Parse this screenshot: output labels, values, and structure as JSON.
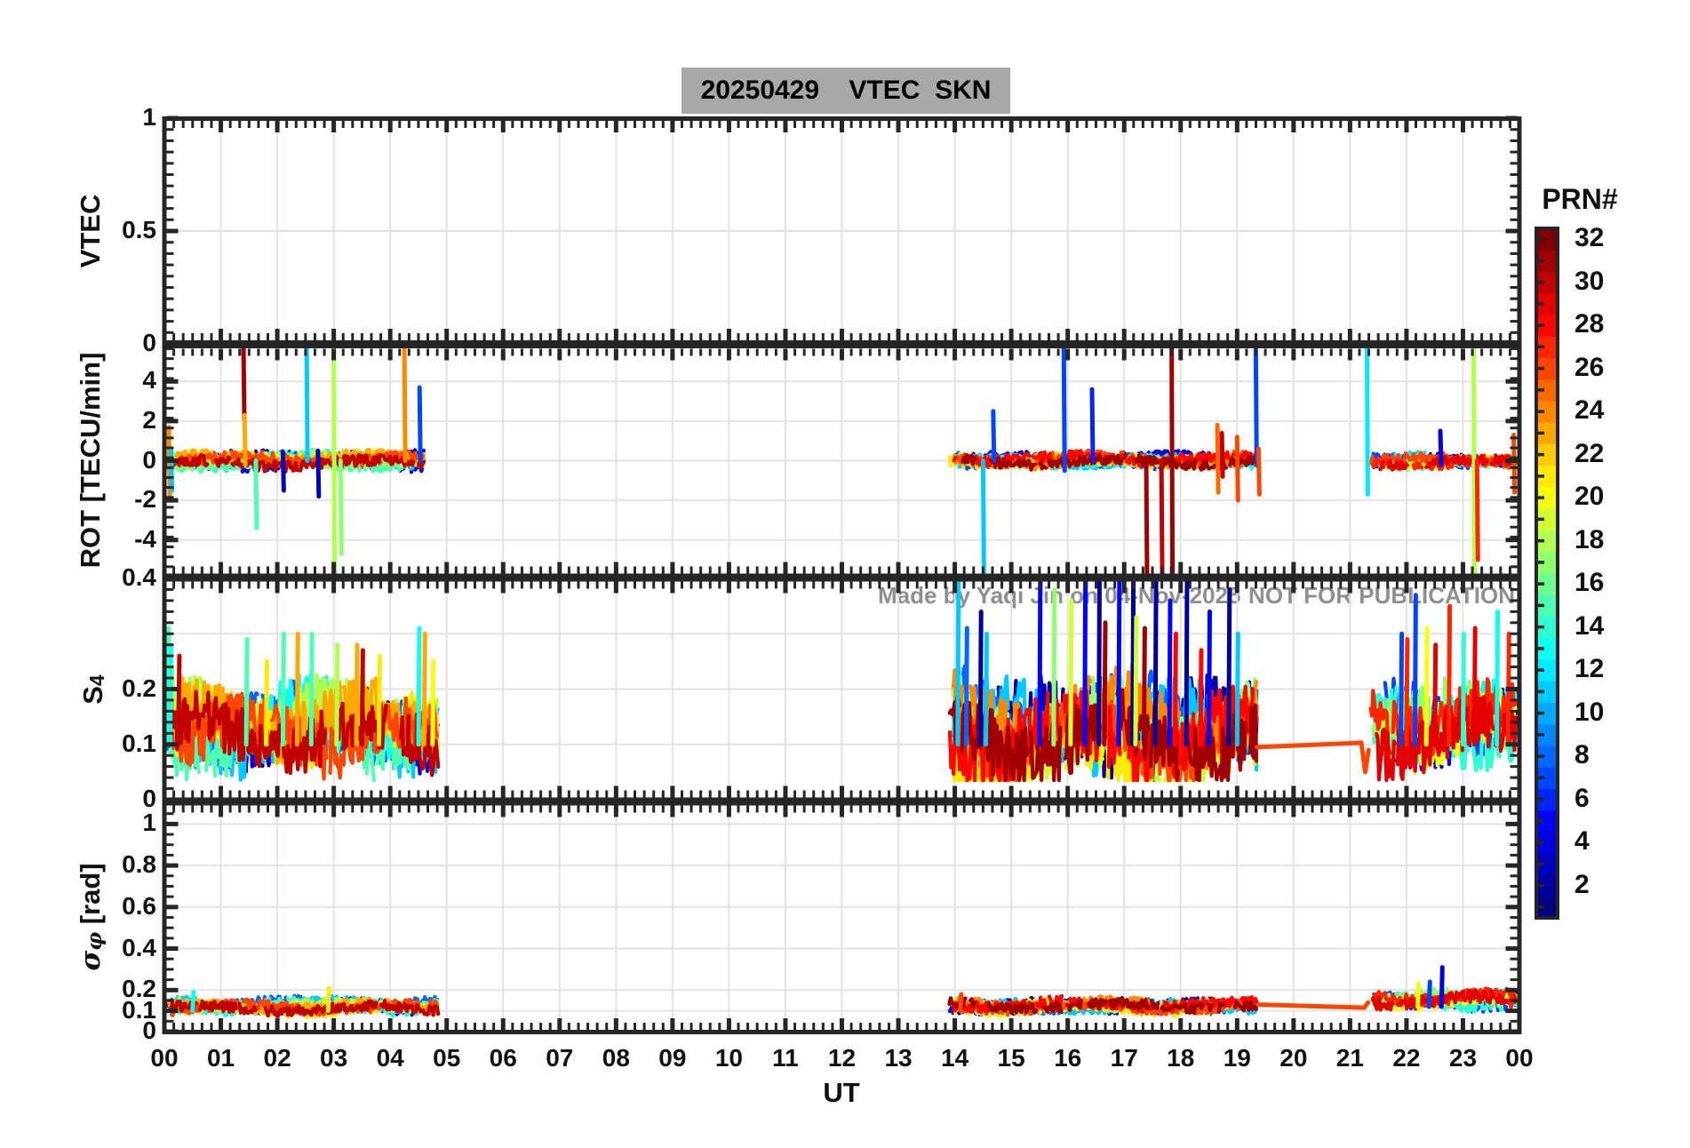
{
  "title": "20250429    VTEC  SKN",
  "watermark": {
    "left": "Made by Yaqi Jin on 04-Nov-2025",
    "right": "NOT FOR PUBLICATION"
  },
  "style": {
    "title_bg": "#a8a8a8",
    "axis_color": "#262626",
    "grid_color": "#e2e2e2",
    "label_color": "#111111",
    "watermark_color": "#8f8f8f",
    "background": "#ffffff"
  },
  "colorbar": {
    "title": "PRN#",
    "colormap": "jet",
    "min": 1,
    "max": 32,
    "tick_values": [
      2,
      4,
      6,
      8,
      10,
      12,
      14,
      16,
      18,
      20,
      22,
      24,
      26,
      28,
      30,
      32
    ],
    "tick_labels": [
      "2",
      "4",
      "6",
      "8",
      "10",
      "12",
      "14",
      "16",
      "18",
      "20",
      "22",
      "24",
      "26",
      "28",
      "30",
      "32"
    ]
  },
  "chart_data": {
    "type": "line",
    "x_axis": {
      "label": "UT",
      "range": [
        0,
        24
      ],
      "minor_tick_minutes": 10,
      "tick_values": [
        0,
        1,
        2,
        3,
        4,
        5,
        6,
        7,
        8,
        9,
        10,
        11,
        12,
        13,
        14,
        15,
        16,
        17,
        18,
        19,
        20,
        21,
        22,
        23,
        24
      ],
      "tick_labels": [
        "00",
        "01",
        "02",
        "03",
        "04",
        "05",
        "06",
        "07",
        "08",
        "09",
        "10",
        "11",
        "12",
        "13",
        "14",
        "15",
        "16",
        "17",
        "18",
        "19",
        "20",
        "21",
        "22",
        "23",
        "00"
      ]
    },
    "panels": [
      {
        "id": "vtec",
        "ylabel": "VTEC",
        "ylim": [
          0,
          1
        ],
        "ytick_values": [
          0,
          0.5,
          1
        ],
        "ytick_labels": [
          "0",
          "0.5",
          "1"
        ],
        "grid_values": [
          0.5
        ],
        "minor_step": 0.05,
        "clusters": [],
        "spikes": [],
        "connectors": []
      },
      {
        "id": "rot",
        "ylabel": "ROT [TECU/min]",
        "ylim": [
          -5.85,
          5.85
        ],
        "ytick_values": [
          -4,
          -2,
          0,
          2,
          4
        ],
        "ytick_labels": [
          "-4",
          "-2",
          "0",
          "2",
          "4"
        ],
        "grid_values": [
          -4,
          -2,
          0,
          2,
          4
        ],
        "minor_step": 0.5,
        "clusters": [
          {
            "t0": 0.05,
            "t1": 4.6,
            "base": 0,
            "amp": 0.55,
            "gap": 0.25,
            "prns": [
              2,
              3,
              4,
              8,
              11,
              13,
              15,
              17,
              18,
              21,
              23,
              26,
              30
            ]
          },
          {
            "t0": 13.9,
            "t1": 19.35,
            "base": 0,
            "amp": 0.5,
            "gap": 0.45,
            "prns": [
              2,
              4,
              7,
              8,
              11,
              13,
              17,
              19,
              21,
              24,
              26,
              28,
              31
            ]
          },
          {
            "t0": 21.35,
            "t1": 23.95,
            "base": 0,
            "amp": 0.5,
            "gap": 0.4,
            "prns": [
              3,
              7,
              12,
              13,
              17,
              20,
              26,
              27,
              29
            ]
          }
        ],
        "spikes": [
          {
            "prn": 24,
            "t": 0.08,
            "v0": 1.7,
            "v1": -1.9
          },
          {
            "prn": 11,
            "t": 0.12,
            "v0": 0.6,
            "v1": -1.5
          },
          {
            "prn": 31,
            "t": 1.4,
            "v0": 5.9,
            "v1": 2.1
          },
          {
            "prn": 23,
            "t": 1.42,
            "v0": 2.3,
            "v1": -0.2
          },
          {
            "prn": 15,
            "t": 1.62,
            "v0": 0,
            "v1": -3.4
          },
          {
            "prn": 3,
            "t": 2.1,
            "v0": 0.4,
            "v1": -1.5
          },
          {
            "prn": 11,
            "t": 2.52,
            "v0": 5.9,
            "v1": 0
          },
          {
            "prn": 3,
            "t": 2.72,
            "v0": 0.5,
            "v1": -1.8
          },
          {
            "prn": 18,
            "t": 3.0,
            "v0": 5.9,
            "v1": -5.9
          },
          {
            "prn": 17,
            "t": 3.12,
            "v0": 0,
            "v1": -4.7
          },
          {
            "prn": 24,
            "t": 4.25,
            "v0": 5.9,
            "v1": 0
          },
          {
            "prn": 7,
            "t": 4.52,
            "v0": 3.7,
            "v1": 0
          },
          {
            "prn": 11,
            "t": 14.5,
            "v0": 0,
            "v1": -5.9
          },
          {
            "prn": 7,
            "t": 14.68,
            "v0": 2.5,
            "v1": 0
          },
          {
            "prn": 7,
            "t": 15.93,
            "v0": 5.9,
            "v1": -0.5
          },
          {
            "prn": 6,
            "t": 16.43,
            "v0": 3.6,
            "v1": 0
          },
          {
            "prn": 31,
            "t": 17.39,
            "v0": 0,
            "v1": -5.9
          },
          {
            "prn": 30,
            "t": 17.66,
            "v0": 0,
            "v1": -5.9
          },
          {
            "prn": 31,
            "t": 17.84,
            "v0": 5.9,
            "v1": -5.9
          },
          {
            "prn": 25,
            "t": 18.65,
            "v0": 1.8,
            "v1": -1.6
          },
          {
            "prn": 30,
            "t": 18.73,
            "v0": 1.4,
            "v1": -0.8
          },
          {
            "prn": 26,
            "t": 19.0,
            "v0": 1.2,
            "v1": -2.0
          },
          {
            "prn": 7,
            "t": 19.33,
            "v0": 5.9,
            "v1": 0
          },
          {
            "prn": 26,
            "t": 19.38,
            "v0": 0.6,
            "v1": -1.7
          },
          {
            "prn": 12,
            "t": 21.3,
            "v0": 5.9,
            "v1": -1.7
          },
          {
            "prn": 4,
            "t": 22.6,
            "v0": 1.5,
            "v1": -0.2
          },
          {
            "prn": 18,
            "t": 23.19,
            "v0": 5.9,
            "v1": -5.9
          },
          {
            "prn": 27,
            "t": 23.25,
            "v0": 0,
            "v1": -5.0
          },
          {
            "prn": 26,
            "t": 23.9,
            "v0": 1.3,
            "v1": -1.6
          }
        ],
        "connectors": []
      },
      {
        "id": "s4",
        "ylabel": "S",
        "ylabel_sub": "4",
        "ylim": [
          0,
          0.4
        ],
        "ytick_values": [
          0,
          0.1,
          0.2,
          0.4
        ],
        "ytick_labels": [
          "0",
          "0.1",
          "0.2",
          "0.4"
        ],
        "grid_values": [
          0.1,
          0.2,
          0.3
        ],
        "minor_step": 0.02,
        "clusters": [
          {
            "t0": 0.03,
            "t1": 4.85,
            "base": 0.13,
            "amp": 0.1,
            "gap": 0.25,
            "prns": [
              2,
              4,
              8,
              11,
              13,
              15,
              18,
              21,
              23,
              26,
              30
            ]
          },
          {
            "t0": 13.9,
            "t1": 19.35,
            "base": 0.12,
            "amp": 0.12,
            "gap": 0.3,
            "prns": [
              2,
              5,
              8,
              11,
              17,
              19,
              21,
              24,
              26,
              28,
              31
            ]
          },
          {
            "t0": 21.35,
            "t1": 23.95,
            "base": 0.14,
            "amp": 0.1,
            "gap": 0.25,
            "prns": [
              4,
              7,
              13,
              14,
              17,
              20,
              27,
              29
            ]
          }
        ],
        "spikes": [
          {
            "prn": 15,
            "t": 0.06,
            "v0": 0.1,
            "v1": 0.31
          },
          {
            "prn": 13,
            "t": 0.1,
            "v0": 0.1,
            "v1": 0.28
          },
          {
            "prn": 30,
            "t": 0.25,
            "v0": 0.1,
            "v1": 0.26
          },
          {
            "prn": 15,
            "t": 1.45,
            "v0": 0.1,
            "v1": 0.29
          },
          {
            "prn": 21,
            "t": 1.8,
            "v0": 0.1,
            "v1": 0.25
          },
          {
            "prn": 15,
            "t": 2.1,
            "v0": 0.1,
            "v1": 0.3
          },
          {
            "prn": 23,
            "t": 2.35,
            "v0": 0.1,
            "v1": 0.3
          },
          {
            "prn": 15,
            "t": 2.6,
            "v0": 0.1,
            "v1": 0.3
          },
          {
            "prn": 18,
            "t": 3.05,
            "v0": 0.1,
            "v1": 0.28
          },
          {
            "prn": 23,
            "t": 3.4,
            "v0": 0.1,
            "v1": 0.28
          },
          {
            "prn": 30,
            "t": 3.5,
            "v0": 0.1,
            "v1": 0.27
          },
          {
            "prn": 21,
            "t": 3.8,
            "v0": 0.1,
            "v1": 0.26
          },
          {
            "prn": 13,
            "t": 4.5,
            "v0": 0.1,
            "v1": 0.31
          },
          {
            "prn": 23,
            "t": 4.6,
            "v0": 0.1,
            "v1": 0.3
          },
          {
            "prn": 20,
            "t": 4.75,
            "v0": 0.1,
            "v1": 0.25
          },
          {
            "prn": 11,
            "t": 14.05,
            "v0": 0.1,
            "v1": 0.42
          },
          {
            "prn": 8,
            "t": 14.2,
            "v0": 0.1,
            "v1": 0.31
          },
          {
            "prn": 2,
            "t": 14.45,
            "v0": 0.1,
            "v1": 0.34
          },
          {
            "prn": 11,
            "t": 14.55,
            "v0": 0.1,
            "v1": 0.3
          },
          {
            "prn": 5,
            "t": 15.5,
            "v0": 0.1,
            "v1": 0.42
          },
          {
            "prn": 17,
            "t": 15.75,
            "v0": 0.1,
            "v1": 0.38
          },
          {
            "prn": 19,
            "t": 16.05,
            "v0": 0.1,
            "v1": 0.36
          },
          {
            "prn": 5,
            "t": 16.3,
            "v0": 0.1,
            "v1": 0.42
          },
          {
            "prn": 2,
            "t": 16.55,
            "v0": 0.1,
            "v1": 0.44
          },
          {
            "prn": 31,
            "t": 16.65,
            "v0": 0.1,
            "v1": 0.32
          },
          {
            "prn": 5,
            "t": 16.9,
            "v0": 0.1,
            "v1": 0.42
          },
          {
            "prn": 2,
            "t": 17.15,
            "v0": 0.1,
            "v1": 0.44
          },
          {
            "prn": 19,
            "t": 17.2,
            "v0": 0.1,
            "v1": 0.33
          },
          {
            "prn": 31,
            "t": 17.35,
            "v0": 0.1,
            "v1": 0.31
          },
          {
            "prn": 2,
            "t": 17.55,
            "v0": 0.1,
            "v1": 0.42
          },
          {
            "prn": 5,
            "t": 17.8,
            "v0": 0.1,
            "v1": 0.36
          },
          {
            "prn": 28,
            "t": 17.9,
            "v0": 0.1,
            "v1": 0.3
          },
          {
            "prn": 2,
            "t": 18.1,
            "v0": 0.1,
            "v1": 0.44
          },
          {
            "prn": 28,
            "t": 18.35,
            "v0": 0.1,
            "v1": 0.27
          },
          {
            "prn": 5,
            "t": 18.5,
            "v0": 0.1,
            "v1": 0.34
          },
          {
            "prn": 2,
            "t": 18.85,
            "v0": 0.1,
            "v1": 0.38
          },
          {
            "prn": 11,
            "t": 19.0,
            "v0": 0.1,
            "v1": 0.3
          },
          {
            "prn": 7,
            "t": 21.9,
            "v0": 0.1,
            "v1": 0.3
          },
          {
            "prn": 27,
            "t": 22.0,
            "v0": 0.1,
            "v1": 0.29
          },
          {
            "prn": 7,
            "t": 22.15,
            "v0": 0.1,
            "v1": 0.37
          },
          {
            "prn": 20,
            "t": 22.35,
            "v0": 0.1,
            "v1": 0.31
          },
          {
            "prn": 29,
            "t": 22.5,
            "v0": 0.1,
            "v1": 0.28
          },
          {
            "prn": 27,
            "t": 22.75,
            "v0": 0.1,
            "v1": 0.35
          },
          {
            "prn": 14,
            "t": 23.0,
            "v0": 0.1,
            "v1": 0.3
          },
          {
            "prn": 29,
            "t": 23.2,
            "v0": 0.1,
            "v1": 0.31
          },
          {
            "prn": 13,
            "t": 23.6,
            "v0": 0.1,
            "v1": 0.34
          },
          {
            "prn": 27,
            "t": 23.8,
            "v0": 0.1,
            "v1": 0.3
          }
        ],
        "connectors": [
          {
            "prn": 26,
            "points": [
              [
                19.35,
                0.095
              ],
              [
                21.2,
                0.103
              ],
              [
                21.27,
                0.05
              ],
              [
                21.33,
                0.09
              ]
            ]
          }
        ]
      },
      {
        "id": "sigma_phi",
        "ylabel": "σ",
        "ylabel_sub": "φ",
        "ylabel_suffix": " [rad]",
        "ylim": [
          0,
          1.1
        ],
        "ytick_values": [
          0,
          0.1,
          0.2,
          0.4,
          0.6,
          0.8,
          1
        ],
        "ytick_labels": [
          "0",
          "0.1",
          "0.2",
          "0.4",
          "0.6",
          "0.8",
          "1"
        ],
        "grid_values": [
          0.1,
          0.2,
          0.4,
          0.6,
          0.8,
          1
        ],
        "minor_step": 0.05,
        "clusters": [
          {
            "t0": 0.03,
            "t1": 4.85,
            "base": 0.12,
            "amp": 0.05,
            "gap": 0.3,
            "prns": [
              2,
              4,
              8,
              11,
              13,
              15,
              18,
              21,
              23,
              26,
              30
            ]
          },
          {
            "t0": 13.9,
            "t1": 19.35,
            "base": 0.12,
            "amp": 0.05,
            "gap": 0.45,
            "prns": [
              2,
              5,
              8,
              11,
              17,
              19,
              21,
              24,
              26,
              28,
              31
            ]
          },
          {
            "t0": 21.35,
            "t1": 23.95,
            "base": 0.15,
            "amp": 0.06,
            "gap": 0.3,
            "prns": [
              4,
              7,
              13,
              14,
              17,
              20,
              27,
              29
            ]
          }
        ],
        "spikes": [
          {
            "prn": 13,
            "t": 0.5,
            "v0": 0.1,
            "v1": 0.19
          },
          {
            "prn": 21,
            "t": 2.9,
            "v0": 0.1,
            "v1": 0.21
          },
          {
            "prn": 26,
            "t": 14.1,
            "v0": 0.1,
            "v1": 0.18
          },
          {
            "prn": 20,
            "t": 22.2,
            "v0": 0.12,
            "v1": 0.23
          },
          {
            "prn": 7,
            "t": 22.4,
            "v0": 0.12,
            "v1": 0.24
          },
          {
            "prn": 4,
            "t": 22.62,
            "v0": 0.12,
            "v1": 0.31
          },
          {
            "prn": 27,
            "t": 23.85,
            "v0": 0.12,
            "v1": 0.2
          }
        ],
        "connectors": [
          {
            "prn": 26,
            "points": [
              [
                19.4,
                0.13
              ],
              [
                21.25,
                0.115
              ],
              [
                21.32,
                0.14
              ]
            ]
          }
        ]
      }
    ]
  }
}
